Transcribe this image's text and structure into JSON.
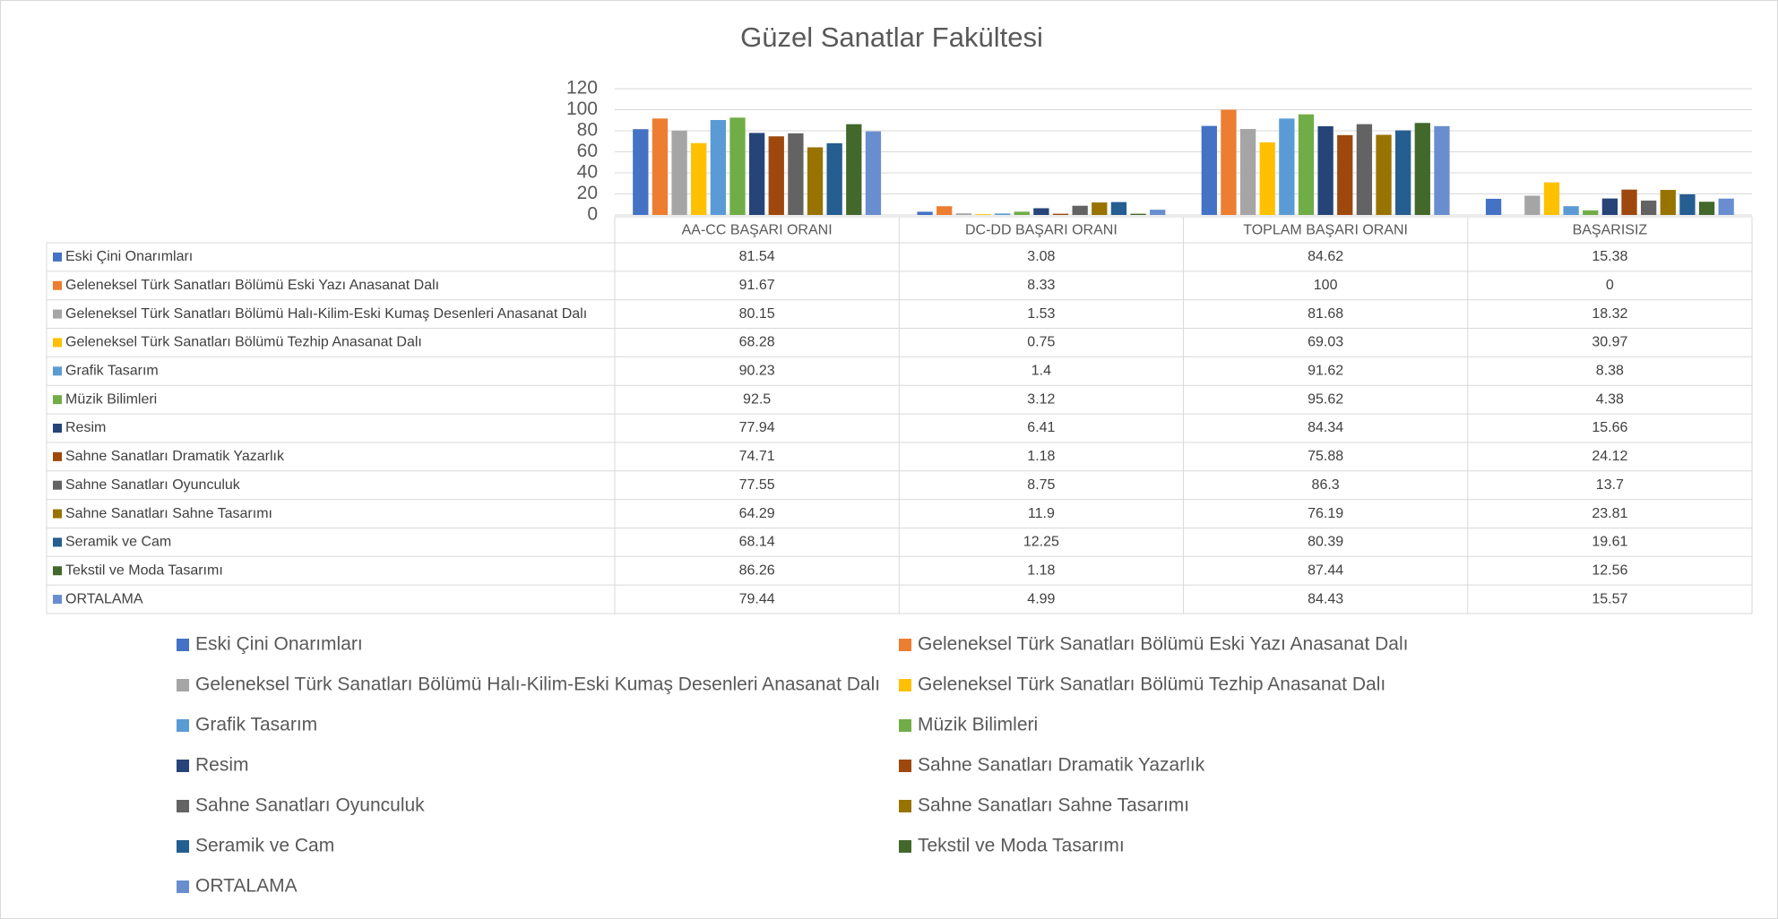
{
  "chart_data": {
    "type": "bar",
    "title": "Güzel Sanatlar Fakültesi",
    "categories": [
      "AA-CC BAŞARI ORANI",
      "DC-DD BAŞARI ORANI",
      "TOPLAM BAŞARI ORANI",
      "BAŞARISIZ"
    ],
    "series": [
      {
        "name": "Eski Çini Onarımları",
        "color": "#4472c4",
        "values": [
          81.54,
          3.08,
          84.62,
          15.38
        ]
      },
      {
        "name": "Geleneksel Türk Sanatları Bölümü Eski Yazı Anasanat Dalı",
        "color": "#ed7d31",
        "values": [
          91.67,
          8.33,
          100,
          0
        ]
      },
      {
        "name": "Geleneksel Türk Sanatları Bölümü Halı-Kilim-Eski Kumaş Desenleri Anasanat Dalı",
        "color": "#a5a5a5",
        "values": [
          80.15,
          1.53,
          81.68,
          18.32
        ]
      },
      {
        "name": "Geleneksel Türk Sanatları Bölümü Tezhip Anasanat Dalı",
        "color": "#ffc000",
        "values": [
          68.28,
          0.75,
          69.03,
          30.97
        ]
      },
      {
        "name": "Grafik Tasarım",
        "color": "#5b9bd5",
        "values": [
          90.23,
          1.4,
          91.62,
          8.38
        ]
      },
      {
        "name": "Müzik Bilimleri",
        "color": "#70ad47",
        "values": [
          92.5,
          3.12,
          95.62,
          4.38
        ]
      },
      {
        "name": "Resim",
        "color": "#264478",
        "values": [
          77.94,
          6.41,
          84.34,
          15.66
        ]
      },
      {
        "name": "Sahne Sanatları Dramatik Yazarlık",
        "color": "#9e480e",
        "values": [
          74.71,
          1.18,
          75.88,
          24.12
        ]
      },
      {
        "name": "Sahne Sanatları Oyunculuk",
        "color": "#636363",
        "values": [
          77.55,
          8.75,
          86.3,
          13.7
        ]
      },
      {
        "name": "Sahne Sanatları Sahne Tasarımı",
        "color": "#997300",
        "values": [
          64.29,
          11.9,
          76.19,
          23.81
        ]
      },
      {
        "name": "Seramik ve Cam",
        "color": "#255e91",
        "values": [
          68.14,
          12.25,
          80.39,
          19.61
        ]
      },
      {
        "name": "Tekstil ve Moda Tasarımı",
        "color": "#43682b",
        "values": [
          86.26,
          1.18,
          87.44,
          12.56
        ]
      },
      {
        "name": "ORTALAMA",
        "color": "#698ed0",
        "values": [
          79.44,
          4.99,
          84.43,
          15.57
        ]
      }
    ],
    "ylim": [
      0,
      120
    ],
    "yticks": [
      0,
      20,
      40,
      60,
      80,
      100,
      120
    ],
    "grid": true,
    "legend": "bottom"
  }
}
